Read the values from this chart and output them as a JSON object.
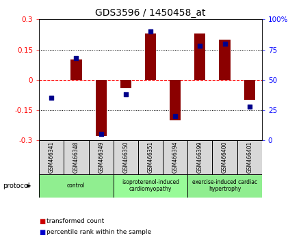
{
  "title": "GDS3596 / 1450458_at",
  "samples": [
    "GSM466341",
    "GSM466348",
    "GSM466349",
    "GSM466350",
    "GSM466351",
    "GSM466394",
    "GSM466399",
    "GSM466400",
    "GSM466401"
  ],
  "transformed_count": [
    0.0,
    0.1,
    -0.28,
    -0.04,
    0.23,
    -0.2,
    0.23,
    0.2,
    -0.1
  ],
  "percentile_rank": [
    35,
    68,
    5,
    38,
    90,
    20,
    78,
    80,
    28
  ],
  "ylim_left": [
    -0.3,
    0.3
  ],
  "ylim_right": [
    0,
    100
  ],
  "yticks_left": [
    -0.3,
    -0.15,
    0,
    0.15,
    0.3
  ],
  "yticks_right": [
    0,
    25,
    50,
    75,
    100
  ],
  "ytick_labels_left": [
    "-0.3",
    "-0.15",
    "0",
    "0.15",
    "0.3"
  ],
  "ytick_labels_right": [
    "0",
    "25",
    "50",
    "75",
    "100%"
  ],
  "hline_y": 0.0,
  "dotted_lines": [
    -0.15,
    0.15
  ],
  "bar_color": "#8B0000",
  "dot_color": "#00008B",
  "groups": [
    {
      "label": "control",
      "start": 0,
      "end": 3,
      "color": "#90EE90"
    },
    {
      "label": "isoproterenol-induced\ncardiomyopathy",
      "start": 3,
      "end": 6,
      "color": "#98FB98"
    },
    {
      "label": "exercise-induced cardiac\nhypertrophy",
      "start": 6,
      "end": 9,
      "color": "#90EE90"
    }
  ],
  "legend_bar_label": "transformed count",
  "legend_dot_label": "percentile rank within the sample",
  "protocol_label": "protocol",
  "bar_color_legend": "#CC0000",
  "dot_color_legend": "#0000CC"
}
